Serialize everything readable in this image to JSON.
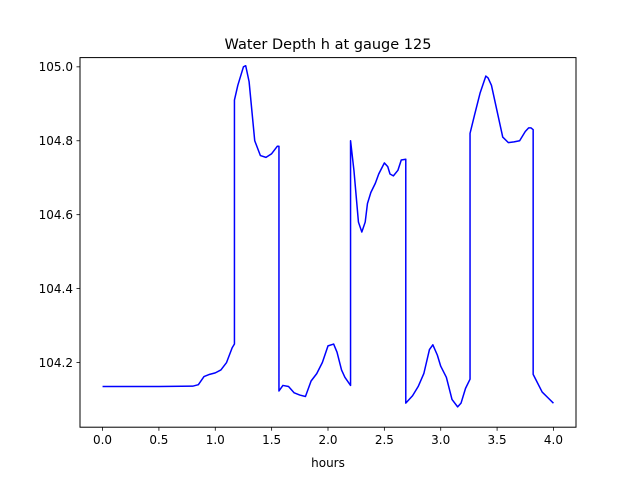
{
  "chart_data": {
    "type": "line",
    "title": "Water Depth h at gauge 125",
    "xlabel": "hours",
    "ylabel": "",
    "xlim": [
      -0.2,
      4.2
    ],
    "ylim": [
      104.025,
      105.025
    ],
    "xticks": [
      0.0,
      0.5,
      1.0,
      1.5,
      2.0,
      2.5,
      3.0,
      3.5,
      4.0
    ],
    "xtick_labels": [
      "0.0",
      "0.5",
      "1.0",
      "1.5",
      "2.0",
      "2.5",
      "3.0",
      "3.5",
      "4.0"
    ],
    "yticks": [
      104.2,
      104.4,
      104.6,
      104.8,
      105.0
    ],
    "ytick_labels": [
      "104.2",
      "104.4",
      "104.6",
      "104.8",
      "105.0"
    ],
    "grid": false,
    "series": [
      {
        "color": "#0000ff",
        "x": [
          0.0,
          0.2,
          0.5,
          0.8,
          0.85,
          0.9,
          0.95,
          1.0,
          1.05,
          1.1,
          1.15,
          1.17,
          1.17,
          1.2,
          1.25,
          1.27,
          1.3,
          1.35,
          1.4,
          1.45,
          1.5,
          1.55,
          1.565,
          1.565,
          1.6,
          1.65,
          1.7,
          1.75,
          1.8,
          1.85,
          1.9,
          1.95,
          2.0,
          2.05,
          2.08,
          2.12,
          2.15,
          2.2,
          2.2,
          2.23,
          2.27,
          2.3,
          2.33,
          2.35,
          2.38,
          2.42,
          2.45,
          2.5,
          2.53,
          2.55,
          2.58,
          2.62,
          2.65,
          2.69,
          2.69,
          2.75,
          2.8,
          2.85,
          2.9,
          2.93,
          2.97,
          3.0,
          3.05,
          3.1,
          3.15,
          3.18,
          3.22,
          3.26,
          3.26,
          3.3,
          3.35,
          3.4,
          3.42,
          3.45,
          3.5,
          3.55,
          3.6,
          3.65,
          3.7,
          3.75,
          3.78,
          3.8,
          3.82,
          3.82,
          3.85,
          3.9,
          3.95,
          4.0
        ],
        "y": [
          104.135,
          104.135,
          104.135,
          104.136,
          104.14,
          104.162,
          104.168,
          104.172,
          104.18,
          104.2,
          104.24,
          104.25,
          104.91,
          104.95,
          105.0,
          105.003,
          104.96,
          104.8,
          104.76,
          104.755,
          104.765,
          104.785,
          104.785,
          104.123,
          104.138,
          104.135,
          104.118,
          104.112,
          104.108,
          104.15,
          104.17,
          104.2,
          104.245,
          104.25,
          104.228,
          104.18,
          104.16,
          104.138,
          104.8,
          104.72,
          104.58,
          104.553,
          104.58,
          104.63,
          104.66,
          104.685,
          104.71,
          104.74,
          104.73,
          104.71,
          104.705,
          104.72,
          104.748,
          104.75,
          104.09,
          104.11,
          104.135,
          104.17,
          104.235,
          104.248,
          104.22,
          104.19,
          104.16,
          104.1,
          104.08,
          104.09,
          104.13,
          104.155,
          104.82,
          104.87,
          104.93,
          104.975,
          104.97,
          104.95,
          104.88,
          104.81,
          104.795,
          104.797,
          104.8,
          104.825,
          104.835,
          104.835,
          104.83,
          104.168,
          104.15,
          104.12,
          104.105,
          104.09
        ]
      }
    ]
  }
}
